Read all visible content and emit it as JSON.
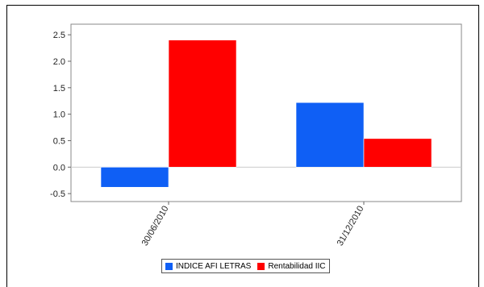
{
  "chart_data": {
    "type": "bar",
    "categories": [
      "30/06/2010",
      "31/12/2010"
    ],
    "series": [
      {
        "name": "INDICE AFI LETRAS",
        "values": [
          -0.38,
          1.22
        ],
        "color": "#0f5ff5"
      },
      {
        "name": "Rentabilidad IIC",
        "values": [
          2.4,
          0.54
        ],
        "color": "#ff0000"
      }
    ],
    "y_ticks": [
      2.5,
      2.0,
      1.5,
      1.0,
      0.5,
      0.0,
      -0.5
    ],
    "y_tick_labels": [
      "2.5",
      "2.0",
      "1.5",
      "1.0",
      "0.5",
      "0.0",
      "-0.5"
    ],
    "ylim": [
      -0.65,
      2.7
    ],
    "grid": false,
    "legend_placement": "bottom-center"
  }
}
